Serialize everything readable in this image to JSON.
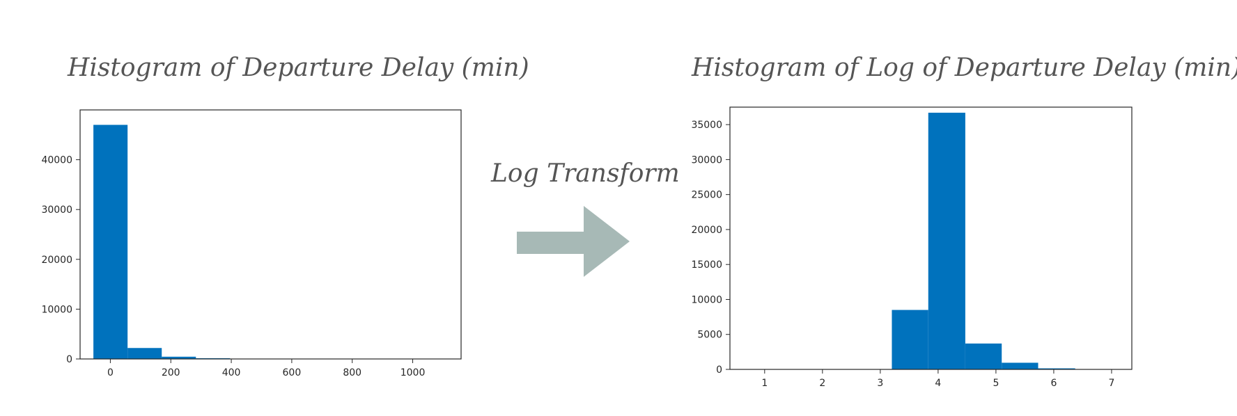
{
  "figure": {
    "transform_label": "Log Transform",
    "arrow_icon": "right-arrow-icon",
    "arrow_color": "#a7b9b6"
  },
  "chart_data": [
    {
      "type": "bar",
      "title": "Histogram of Departure Delay (min)",
      "xlabel": "",
      "ylabel": "",
      "color": "#0072bd",
      "xlim": [
        -100,
        1160
      ],
      "ylim": [
        0,
        50000
      ],
      "xticks": [
        0,
        200,
        400,
        600,
        800,
        1000
      ],
      "yticks": [
        0,
        10000,
        20000,
        30000,
        40000
      ],
      "bins": [
        {
          "x0": -56,
          "x1": 57,
          "value": 47000
        },
        {
          "x0": 57,
          "x1": 170,
          "value": 2200
        },
        {
          "x0": 170,
          "x1": 283,
          "value": 450
        },
        {
          "x0": 283,
          "x1": 396,
          "value": 150
        },
        {
          "x0": 396,
          "x1": 509,
          "value": 50
        },
        {
          "x0": 509,
          "x1": 622,
          "value": 20
        },
        {
          "x0": 622,
          "x1": 735,
          "value": 10
        },
        {
          "x0": 735,
          "x1": 848,
          "value": 5
        },
        {
          "x0": 848,
          "x1": 961,
          "value": 3
        },
        {
          "x0": 961,
          "x1": 1074,
          "value": 2
        }
      ]
    },
    {
      "type": "bar",
      "title": "Histogram of Log of Departure Delay (min)",
      "xlabel": "",
      "ylabel": "",
      "color": "#0072bd",
      "xlim": [
        0.4,
        7.35
      ],
      "ylim": [
        0,
        37500
      ],
      "xticks": [
        1,
        2,
        3,
        4,
        5,
        6,
        7
      ],
      "yticks": [
        0,
        5000,
        10000,
        15000,
        20000,
        25000,
        30000,
        35000
      ],
      "bins": [
        {
          "x0": 0.0,
          "x1": 0.63,
          "value": 0
        },
        {
          "x0": 0.63,
          "x1": 1.26,
          "value": 0
        },
        {
          "x0": 1.26,
          "x1": 1.89,
          "value": 0
        },
        {
          "x0": 1.89,
          "x1": 2.52,
          "value": 0
        },
        {
          "x0": 2.52,
          "x1": 3.2,
          "value": 0
        },
        {
          "x0": 3.2,
          "x1": 3.83,
          "value": 8500
        },
        {
          "x0": 3.83,
          "x1": 4.47,
          "value": 36700
        },
        {
          "x0": 4.47,
          "x1": 5.1,
          "value": 3700
        },
        {
          "x0": 5.1,
          "x1": 5.73,
          "value": 950
        },
        {
          "x0": 5.73,
          "x1": 6.37,
          "value": 150
        },
        {
          "x0": 6.37,
          "x1": 7.0,
          "value": 30
        }
      ]
    }
  ]
}
